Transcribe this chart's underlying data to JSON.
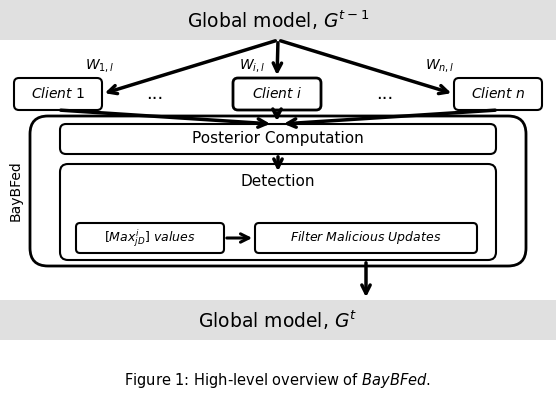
{
  "fig_width": 5.56,
  "fig_height": 4.08,
  "dpi": 100,
  "bg_color": "#ffffff",
  "gray_bg": "#e0e0e0",
  "title_top": "Global model, $G^{t-1}$",
  "title_bottom": "Global model, $G^{t}$",
  "caption": "Figure 1: High-level overview of $\\mathit{BayBFed}$.",
  "client1_label": "$\\mathit{Client\\ 1}$",
  "clienti_label": "$\\mathit{Client\\ i}$",
  "clientn_label": "$\\mathit{Client\\ n}$",
  "posterior_label": "Posterior Computation",
  "detection_label": "Detection",
  "maxjd_label": "$[Max^{i}_{jD}]\\mathit{\\ values}$",
  "filter_label": "$\\mathit{Filter\\ Malicious\\ Updates}$",
  "baybfed_label": "BayBFed",
  "w1l_label": "$W_{1,l}$",
  "wil_label": "$W_{i,l}$",
  "wnl_label": "$W_{n,l}$",
  "dots": "..."
}
